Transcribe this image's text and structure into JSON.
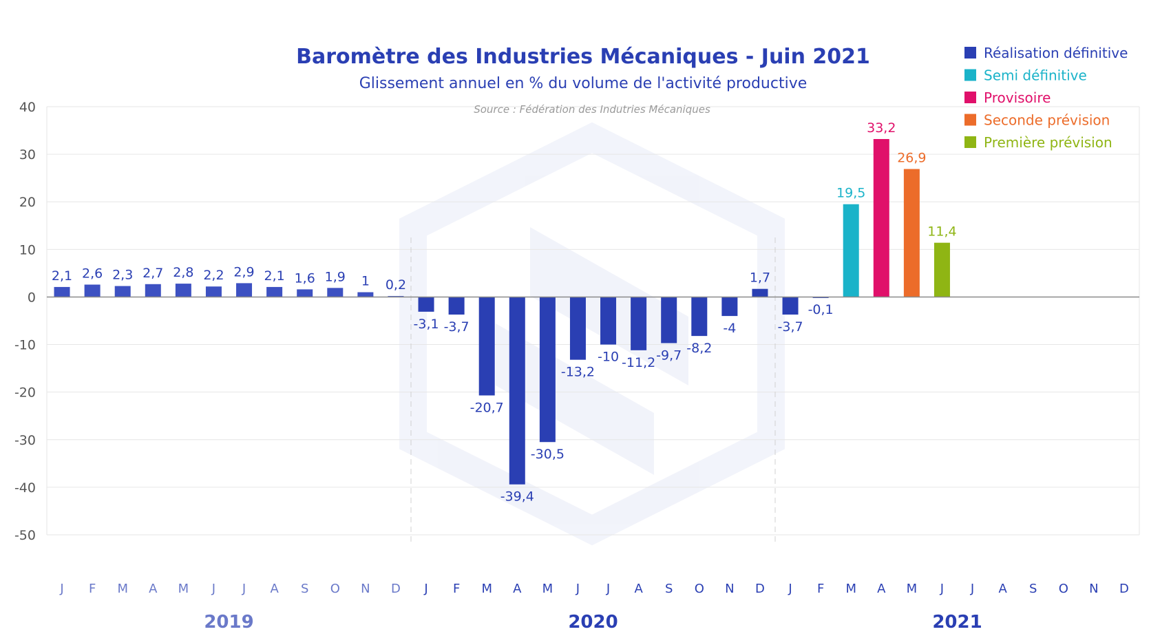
{
  "chart_data": {
    "type": "bar",
    "title": "Baromètre des Industries Mécaniques - Juin 2021",
    "subtitle": "Glissement annuel en % du volume de l'activité productive",
    "source": "Source : Fédération des Indutries Mécaniques",
    "ylim": [
      -50,
      40
    ],
    "yticks": [
      40,
      30,
      20,
      10,
      0,
      -10,
      -20,
      -30,
      -40,
      -50
    ],
    "ytick_labels": [
      "40",
      "30",
      "20",
      "10",
      "0",
      "-10",
      "-20",
      "-30",
      "-40",
      "-50"
    ],
    "grid": true,
    "legend_position": "top-right",
    "legend": [
      {
        "label": "Réalisation définitive",
        "color": "#2a3fb3"
      },
      {
        "label": "Semi définitive",
        "color": "#1ab3c9"
      },
      {
        "label": "Provisoire",
        "color": "#e0106a"
      },
      {
        "label": "Seconde prévision",
        "color": "#ec6c2a"
      },
      {
        "label": "Première prévision",
        "color": "#8fb514"
      }
    ],
    "years": [
      {
        "label": "2019",
        "color": "#6a79c9"
      },
      {
        "label": "2020",
        "color": "#2a3fb3"
      },
      {
        "label": "2021",
        "color": "#2a3fb3"
      }
    ],
    "months": [
      "J",
      "F",
      "M",
      "A",
      "M",
      "J",
      "J",
      "A",
      "S",
      "O",
      "N",
      "D",
      "J",
      "F",
      "M",
      "A",
      "M",
      "J",
      "J",
      "A",
      "S",
      "O",
      "N",
      "D",
      "J",
      "F",
      "M",
      "A",
      "M",
      "J",
      "J",
      "A",
      "S",
      "O",
      "N",
      "D"
    ],
    "values": [
      2.1,
      2.6,
      2.3,
      2.7,
      2.8,
      2.2,
      2.9,
      2.1,
      1.6,
      1.9,
      1,
      0.2,
      -3.1,
      -3.7,
      -20.7,
      -39.4,
      -30.5,
      -13.2,
      -10,
      -11.2,
      -9.7,
      -8.2,
      -4,
      1.7,
      -3.7,
      -0.1,
      19.5,
      33.2,
      26.9,
      11.4,
      null,
      null,
      null,
      null,
      null,
      null
    ],
    "labels": [
      "2,1",
      "2,6",
      "2,3",
      "2,7",
      "2,8",
      "2,2",
      "2,9",
      "2,1",
      "1,6",
      "1,9",
      "1",
      "0,2",
      "-3,1",
      "-3,7",
      "-20,7",
      "-39,4",
      "-30,5",
      "-13,2",
      "-10",
      "-11,2",
      "-9,7",
      "-8,2",
      "-4",
      "1,7",
      "-3,7",
      "-0,1",
      "19,5",
      "33,2",
      "26,9",
      "11,4",
      "",
      "",
      "",
      "",
      "",
      ""
    ],
    "colors": [
      "#3d51c2",
      "#3d51c2",
      "#3d51c2",
      "#3d51c2",
      "#3d51c2",
      "#3d51c2",
      "#3d51c2",
      "#3d51c2",
      "#3d51c2",
      "#3d51c2",
      "#3d51c2",
      "#3d51c2",
      "#2a3fb3",
      "#2a3fb3",
      "#2a3fb3",
      "#2a3fb3",
      "#2a3fb3",
      "#2a3fb3",
      "#2a3fb3",
      "#2a3fb3",
      "#2a3fb3",
      "#2a3fb3",
      "#2a3fb3",
      "#2a3fb3",
      "#2a3fb3",
      "#2a3fb3",
      "#1ab3c9",
      "#e0106a",
      "#ec6c2a",
      "#8fb514",
      null,
      null,
      null,
      null,
      null,
      null
    ],
    "label_colors": [
      "#2a3fb3",
      "#2a3fb3",
      "#2a3fb3",
      "#2a3fb3",
      "#2a3fb3",
      "#2a3fb3",
      "#2a3fb3",
      "#2a3fb3",
      "#2a3fb3",
      "#2a3fb3",
      "#2a3fb3",
      "#2a3fb3",
      "#2a3fb3",
      "#2a3fb3",
      "#2a3fb3",
      "#2a3fb3",
      "#2a3fb3",
      "#2a3fb3",
      "#2a3fb3",
      "#2a3fb3",
      "#2a3fb3",
      "#2a3fb3",
      "#2a3fb3",
      "#2a3fb3",
      "#2a3fb3",
      "#2a3fb3",
      "#1ab3c9",
      "#e0106a",
      "#ec6c2a",
      "#8fb514",
      null,
      null,
      null,
      null,
      null,
      null
    ]
  }
}
